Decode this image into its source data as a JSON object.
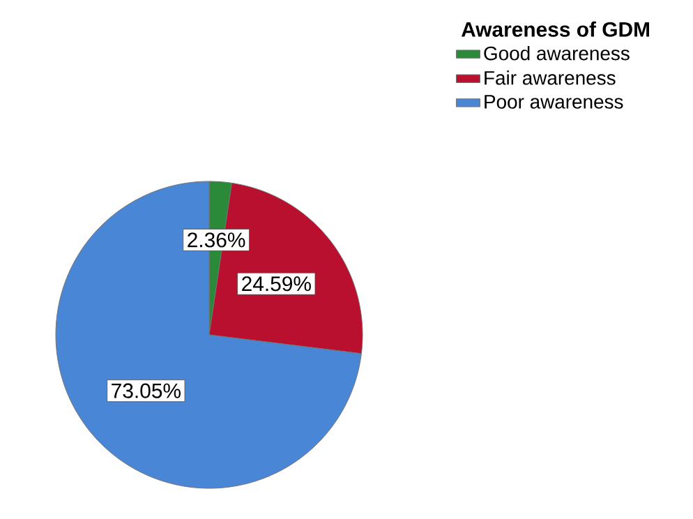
{
  "chart_data": {
    "type": "pie",
    "legend_title": "Awareness of GDM",
    "categories": [
      "Good awareness",
      "Fair awareness",
      "Poor awareness"
    ],
    "values": [
      2.36,
      24.59,
      73.05
    ],
    "colors": [
      "#2a8a3a",
      "#b8102e",
      "#4a86d6"
    ],
    "value_labels": [
      "2.36%",
      "24.59%",
      "73.05%"
    ],
    "legend": "top right"
  }
}
